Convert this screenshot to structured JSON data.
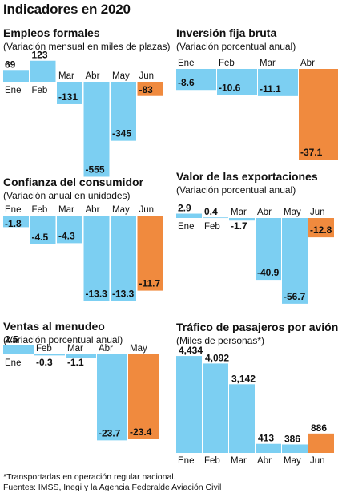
{
  "title": "Indicadores en 2020",
  "footnotes": [
    "*Transportadas en operación regular nacional.",
    "Fuentes: IMSS, Inegi y la Agencia Federalde Aviación Civil"
  ],
  "colors": {
    "bar": "#7ccff2",
    "highlight": "#f08a3e",
    "axis": "#ffffff"
  },
  "chart_data": [
    {
      "type": "bar",
      "title": "Empleos formales",
      "subtitle": "(Variación mensual en miles de plazas)",
      "categories": [
        "Ene",
        "Feb",
        "Mar",
        "Abr",
        "May",
        "Jun"
      ],
      "values": [
        69,
        123,
        -131,
        -555,
        -345,
        -83
      ],
      "labels": [
        "69",
        "123",
        "-131",
        "-555",
        "-345",
        "-83"
      ],
      "highlight_index": 5
    },
    {
      "type": "bar",
      "title": "Inversión fija bruta",
      "subtitle": "(Variación porcentual anual)",
      "categories": [
        "Ene",
        "Feb",
        "Mar",
        "Abr"
      ],
      "values": [
        -8.6,
        -10.6,
        -11.1,
        -37.1
      ],
      "labels": [
        "-8.6",
        "-10.6",
        "-11.1",
        "-37.1"
      ],
      "highlight_index": 3
    },
    {
      "type": "bar",
      "title": "Confianza del consumidor",
      "subtitle": "(Variación anual en unidades)",
      "categories": [
        "Ene",
        "Feb",
        "Mar",
        "Abr",
        "May",
        "Jun"
      ],
      "values": [
        -1.8,
        -4.5,
        -4.3,
        -13.3,
        -13.3,
        -11.7
      ],
      "labels": [
        "-1.8",
        "-4.5",
        "-4.3",
        "-13.3",
        "-13.3",
        "-11.7"
      ],
      "highlight_index": 5
    },
    {
      "type": "bar",
      "title": "Valor de las exportaciones",
      "subtitle": "(Variación porcentual anual)",
      "categories": [
        "Ene",
        "Feb",
        "Mar",
        "Abr",
        "May",
        "Jun"
      ],
      "values": [
        2.9,
        0.4,
        -1.7,
        -40.9,
        -56.7,
        -12.8
      ],
      "labels": [
        "2.9",
        "0.4",
        "-1.7",
        "-40.9",
        "-56.7",
        "-12.8"
      ],
      "highlight_index": 5
    },
    {
      "type": "bar",
      "title": "Ventas al menudeo",
      "subtitle": "(Variación porcentual anual)",
      "categories": [
        "Ene",
        "Feb",
        "Mar",
        "Abr",
        "May"
      ],
      "values": [
        2.5,
        -0.3,
        -1.1,
        -23.7,
        -23.4
      ],
      "labels": [
        "2.5",
        "-0.3",
        "-1.1",
        "-23.7",
        "-23.4"
      ],
      "highlight_index": 4
    },
    {
      "type": "bar",
      "title": "Tráfico de pasajeros por avión",
      "subtitle": "(Miles de personas*)",
      "categories": [
        "Ene",
        "Feb",
        "Mar",
        "Abr",
        "May",
        "Jun"
      ],
      "values": [
        4434,
        4092,
        3142,
        413,
        386,
        886
      ],
      "labels": [
        "4,434",
        "4,092",
        "3,142",
        "413",
        "386",
        "886"
      ],
      "highlight_index": 5
    }
  ]
}
